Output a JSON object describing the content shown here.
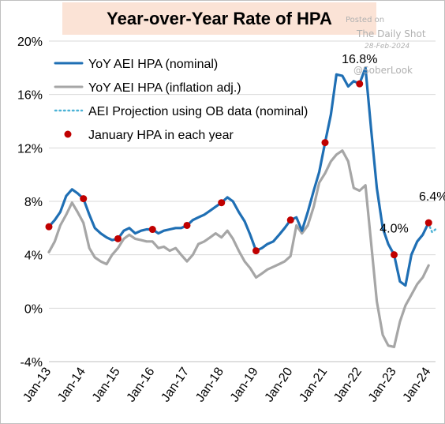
{
  "chart_data": {
    "type": "line",
    "title": "Year-over-Year Rate of HPA",
    "ylim": [
      -4,
      20
    ],
    "yticks": [
      -4,
      0,
      4,
      8,
      12,
      16,
      20
    ],
    "ytick_labels": [
      "-4%",
      "0%",
      "4%",
      "8%",
      "12%",
      "16%",
      "20%"
    ],
    "xlim": [
      2013.0,
      2024.2
    ],
    "xticks": [
      2013,
      2014,
      2015,
      2016,
      2017,
      2018,
      2019,
      2020,
      2021,
      2022,
      2023,
      2024
    ],
    "xtick_labels": [
      "Jan-13",
      "Jan-14",
      "Jan-15",
      "Jan-16",
      "Jan-17",
      "Jan-18",
      "Jan-19",
      "Jan-20",
      "Jan-21",
      "Jan-22",
      "Jan-23",
      "Jan-24"
    ],
    "grid": true,
    "legend_placement": "top-left",
    "series": [
      {
        "name": "YoY AEI HPA (nominal)",
        "color": "#1f6fb4",
        "style": "solid",
        "x": [
          2013.0,
          2013.17,
          2013.33,
          2013.5,
          2013.67,
          2013.83,
          2014.0,
          2014.17,
          2014.33,
          2014.5,
          2014.67,
          2014.83,
          2015.0,
          2015.17,
          2015.33,
          2015.5,
          2015.67,
          2015.83,
          2016.0,
          2016.17,
          2016.33,
          2016.5,
          2016.67,
          2016.83,
          2017.0,
          2017.17,
          2017.33,
          2017.5,
          2017.67,
          2017.83,
          2018.0,
          2018.17,
          2018.33,
          2018.5,
          2018.67,
          2018.83,
          2019.0,
          2019.17,
          2019.33,
          2019.5,
          2019.67,
          2019.83,
          2020.0,
          2020.17,
          2020.33,
          2020.5,
          2020.67,
          2020.83,
          2021.0,
          2021.17,
          2021.33,
          2021.5,
          2021.67,
          2021.83,
          2022.0,
          2022.17,
          2022.33,
          2022.5,
          2022.67,
          2022.83,
          2023.0,
          2023.17,
          2023.33,
          2023.5,
          2023.67,
          2023.83,
          2024.0
        ],
        "y": [
          6.1,
          6.6,
          7.2,
          8.4,
          8.9,
          8.6,
          8.2,
          7.0,
          6.0,
          5.6,
          5.3,
          5.1,
          5.2,
          5.8,
          6.0,
          5.6,
          5.8,
          5.9,
          5.9,
          5.6,
          5.8,
          5.9,
          6.0,
          6.0,
          6.2,
          6.6,
          6.8,
          7.0,
          7.3,
          7.6,
          7.9,
          8.3,
          8.0,
          7.2,
          6.5,
          5.5,
          4.3,
          4.5,
          4.8,
          5.0,
          5.5,
          6.0,
          6.6,
          6.8,
          5.8,
          7.2,
          8.8,
          10.2,
          12.4,
          14.5,
          17.5,
          17.4,
          16.6,
          17.0,
          16.8,
          18.0,
          13.5,
          9.0,
          6.0,
          4.8,
          4.0,
          2.0,
          1.7,
          4.0,
          5.0,
          5.5,
          6.4
        ]
      },
      {
        "name": "YoY AEI HPA (inflation adj.)",
        "color": "#a6a6a6",
        "style": "solid",
        "x": [
          2013.0,
          2013.17,
          2013.33,
          2013.5,
          2013.67,
          2013.83,
          2014.0,
          2014.17,
          2014.33,
          2014.5,
          2014.67,
          2014.83,
          2015.0,
          2015.17,
          2015.33,
          2015.5,
          2015.67,
          2015.83,
          2016.0,
          2016.17,
          2016.33,
          2016.5,
          2016.67,
          2016.83,
          2017.0,
          2017.17,
          2017.33,
          2017.5,
          2017.67,
          2017.83,
          2018.0,
          2018.17,
          2018.33,
          2018.5,
          2018.67,
          2018.83,
          2019.0,
          2019.17,
          2019.33,
          2019.5,
          2019.67,
          2019.83,
          2020.0,
          2020.17,
          2020.33,
          2020.5,
          2020.67,
          2020.83,
          2021.0,
          2021.17,
          2021.33,
          2021.5,
          2021.67,
          2021.83,
          2022.0,
          2022.17,
          2022.33,
          2022.5,
          2022.67,
          2022.83,
          2023.0,
          2023.17,
          2023.33,
          2023.5,
          2023.67,
          2023.83,
          2024.0
        ],
        "y": [
          4.2,
          5.0,
          6.2,
          7.0,
          7.9,
          7.2,
          6.4,
          4.5,
          3.8,
          3.5,
          3.3,
          4.0,
          4.5,
          5.2,
          5.5,
          5.2,
          5.1,
          5.0,
          5.0,
          4.5,
          4.6,
          4.3,
          4.5,
          4.0,
          3.5,
          4.0,
          4.8,
          5.0,
          5.3,
          5.6,
          5.3,
          5.8,
          5.2,
          4.3,
          3.5,
          3.0,
          2.3,
          2.6,
          2.9,
          3.1,
          3.3,
          3.5,
          3.9,
          6.2,
          5.6,
          6.2,
          7.6,
          9.4,
          10.1,
          11.0,
          11.5,
          11.8,
          11.0,
          9.0,
          8.8,
          9.2,
          5.0,
          0.5,
          -2.0,
          -2.8,
          -2.9,
          -1.0,
          0.2,
          1.0,
          1.8,
          2.3,
          3.2
        ]
      },
      {
        "name": "AEI Projection using OB data (nominal)",
        "color": "#4db3d6",
        "style": "dotted",
        "x": [
          2024.0,
          2024.05,
          2024.1,
          2024.15,
          2024.2
        ],
        "y": [
          6.4,
          6.0,
          5.7,
          5.8,
          5.9
        ]
      },
      {
        "name": "January HPA in each year",
        "color": "#c00000",
        "style": "marker",
        "x": [
          2013,
          2014,
          2015,
          2016,
          2017,
          2018,
          2019,
          2020,
          2021,
          2022,
          2023,
          2024
        ],
        "y": [
          6.1,
          8.2,
          5.2,
          5.9,
          6.2,
          7.9,
          4.3,
          6.6,
          12.4,
          16.8,
          4.0,
          6.4
        ]
      }
    ],
    "annotations": [
      {
        "text": "16.8%",
        "x": 2022.0,
        "y": 16.8
      },
      {
        "text": "4.0%",
        "x": 2023.0,
        "y": 4.0
      },
      {
        "text": "6.4%",
        "x": 2024.0,
        "y": 6.4
      }
    ]
  },
  "watermark": {
    "line1": "Posted on",
    "line2": "The Daily Shot",
    "line3": "28-Feb-2024",
    "line4": "@SoberLook"
  }
}
